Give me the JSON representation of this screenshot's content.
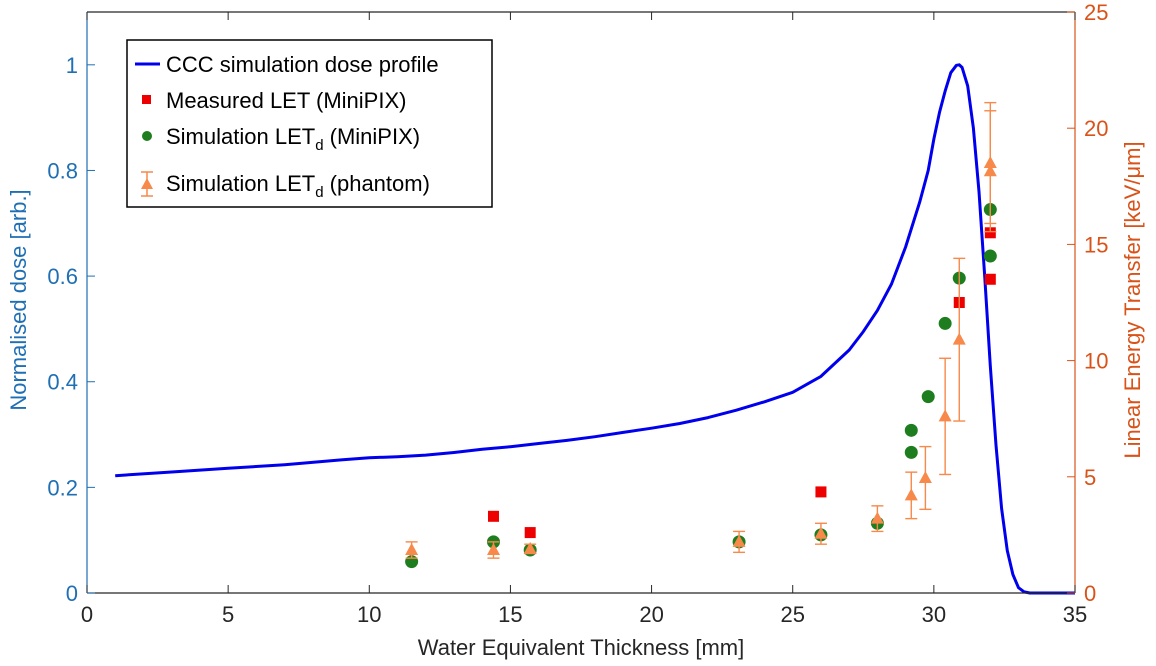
{
  "colors": {
    "left_axis": "#1f6fb4",
    "right_axis": "#d95319",
    "dose_line": "#0000ee",
    "measured": "#ee0000",
    "sim_minipix": "#1e7d1e",
    "sim_phantom": "#f7894a"
  },
  "chart_data": {
    "type": "scatter",
    "xlabel": "Water Equivalent Thickness [mm]",
    "ylabel_left": "Normalised dose [arb.]",
    "ylabel_right": "Linear Energy Transfer [keV/μm]",
    "xlim": [
      0,
      35
    ],
    "ylim_left": [
      0,
      1.1
    ],
    "ylim_right": [
      0,
      25
    ],
    "x_ticks": [
      "0",
      "5",
      "10",
      "15",
      "20",
      "25",
      "30",
      "35"
    ],
    "y_left_ticks": [
      "0",
      "0.2",
      "0.4",
      "0.6",
      "0.8",
      "1"
    ],
    "y_right_ticks": [
      "0",
      "5",
      "10",
      "15",
      "20",
      "25"
    ],
    "legend_position": "top-left",
    "legend": {
      "dose": "CCC simulation dose profile",
      "measured": "Measured LET (MiniPIX)",
      "sim_minipix_prefix": "Simulation LET",
      "sim_minipix_sub": "d",
      "sim_minipix_suffix": " (MiniPIX)",
      "sim_phantom_prefix": "Simulation LET",
      "sim_phantom_sub": "d",
      "sim_phantom_suffix": " (phantom)"
    },
    "series": [
      {
        "name": "CCC simulation dose profile",
        "axis": "left",
        "kind": "line",
        "x": [
          1,
          3,
          5,
          7,
          9,
          10,
          11,
          12,
          13,
          14,
          15,
          16,
          17,
          18,
          19,
          20,
          21,
          22,
          23,
          24,
          25,
          26,
          27,
          27.5,
          28,
          28.5,
          29,
          29.5,
          29.8,
          30,
          30.2,
          30.4,
          30.6,
          30.8,
          30.9,
          31.0,
          31.2,
          31.4,
          31.6,
          31.8,
          32.0,
          32.2,
          32.4,
          32.6,
          32.8,
          33.0,
          33.2,
          33.4,
          34,
          35
        ],
        "y": [
          0.222,
          0.229,
          0.236,
          0.243,
          0.252,
          0.256,
          0.258,
          0.261,
          0.266,
          0.272,
          0.277,
          0.283,
          0.289,
          0.296,
          0.304,
          0.312,
          0.321,
          0.332,
          0.346,
          0.362,
          0.38,
          0.41,
          0.46,
          0.495,
          0.535,
          0.585,
          0.655,
          0.74,
          0.8,
          0.86,
          0.91,
          0.95,
          0.985,
          0.999,
          1.0,
          0.995,
          0.96,
          0.88,
          0.76,
          0.6,
          0.43,
          0.28,
          0.16,
          0.08,
          0.035,
          0.01,
          0.002,
          0.0,
          0.0,
          0.0
        ]
      },
      {
        "name": "Measured LET (MiniPIX)",
        "axis": "right",
        "kind": "square",
        "x": [
          14.4,
          15.7,
          26.0,
          30.9,
          32.0,
          32.0
        ],
        "y": [
          3.3,
          2.6,
          4.35,
          12.5,
          15.5,
          13.5
        ]
      },
      {
        "name": "Simulation LETd (MiniPIX)",
        "axis": "right",
        "kind": "circle",
        "x": [
          11.5,
          14.4,
          15.7,
          23.1,
          26.0,
          28.0,
          29.2,
          29.2,
          29.8,
          30.4,
          30.9,
          32.0,
          32.0
        ],
        "y": [
          1.35,
          2.2,
          1.85,
          2.2,
          2.5,
          3.0,
          6.05,
          7.0,
          8.45,
          11.6,
          13.55,
          16.5,
          14.5
        ]
      },
      {
        "name": "Simulation LETd (phantom)",
        "axis": "right",
        "kind": "triangle",
        "x": [
          11.5,
          14.4,
          15.7,
          23.1,
          26.0,
          28.0,
          29.2,
          29.7,
          30.4,
          30.9,
          32.0,
          32.0
        ],
        "y": [
          1.85,
          1.85,
          1.9,
          2.2,
          2.55,
          3.2,
          4.2,
          4.95,
          7.6,
          10.9,
          18.5,
          18.15
        ],
        "err": [
          0.35,
          0.35,
          0.2,
          0.45,
          0.45,
          0.55,
          1.0,
          1.35,
          2.5,
          3.5,
          2.6,
          2.6
        ]
      }
    ]
  }
}
